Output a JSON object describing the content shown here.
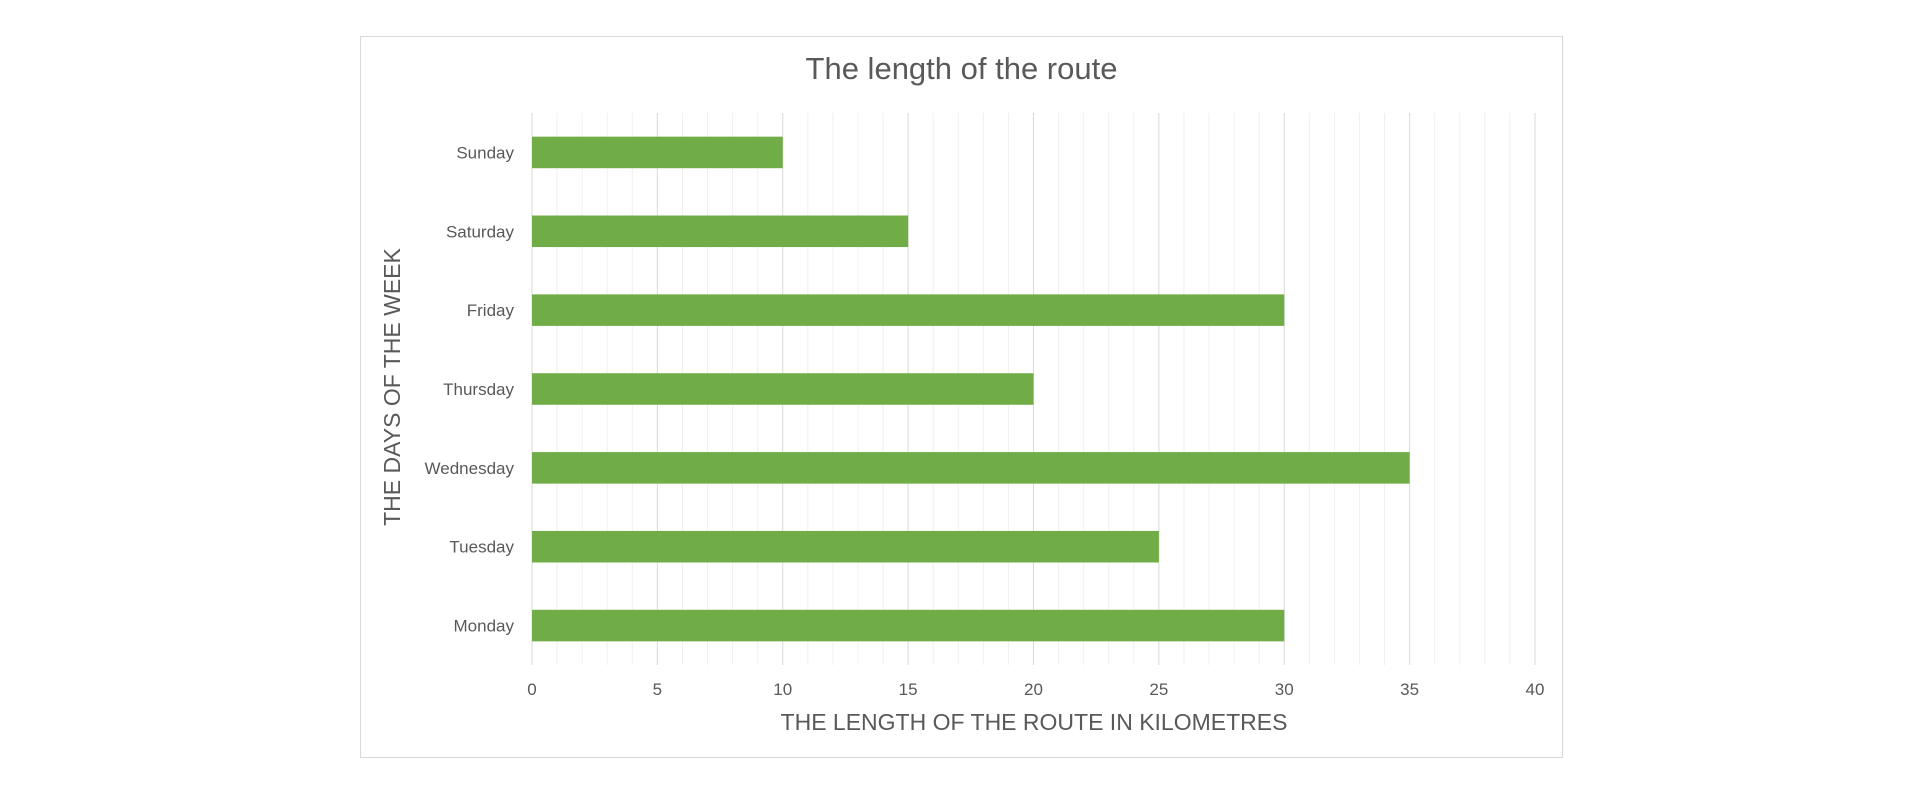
{
  "chart_data": {
    "type": "bar",
    "orientation": "horizontal",
    "title": "The length of the route",
    "xlabel": "THE LENGTH OF THE ROUTE IN KILOMETRES",
    "ylabel": "THE DAYS OF THE WEEK",
    "categories": [
      "Monday",
      "Tuesday",
      "Wednesday",
      "Thursday",
      "Friday",
      "Saturday",
      "Sunday"
    ],
    "values": [
      30,
      25,
      35,
      20,
      30,
      15,
      10
    ],
    "xlim": [
      0,
      40
    ],
    "x_ticks": [
      "0",
      "5",
      "10",
      "15",
      "20",
      "25",
      "30",
      "35",
      "40"
    ],
    "grid": true,
    "legend": "none",
    "bar_color": "#70ad47"
  }
}
